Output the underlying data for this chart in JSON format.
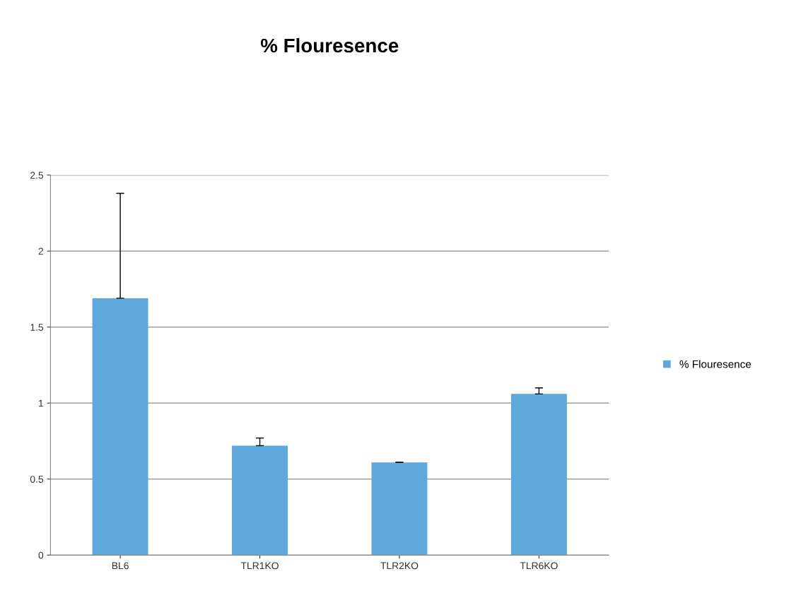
{
  "chart_data": {
    "type": "bar",
    "title": "% Flouresence",
    "categories": [
      "BL6",
      "TLR1KO",
      "TLR2KO",
      "TLR6KO"
    ],
    "series": [
      {
        "name": "% Flouresence",
        "color": "#5fa8dc",
        "values": [
          1.69,
          0.72,
          0.61,
          1.06
        ],
        "errors": [
          [
            1.69,
            2.38
          ],
          [
            0.72,
            0.77
          ],
          null,
          [
            1.06,
            1.1
          ]
        ]
      }
    ],
    "ylim": [
      0,
      2.5
    ],
    "yticks": [
      0,
      0.5,
      1,
      1.5,
      2,
      2.5
    ],
    "grid": "y",
    "legend": "right"
  }
}
